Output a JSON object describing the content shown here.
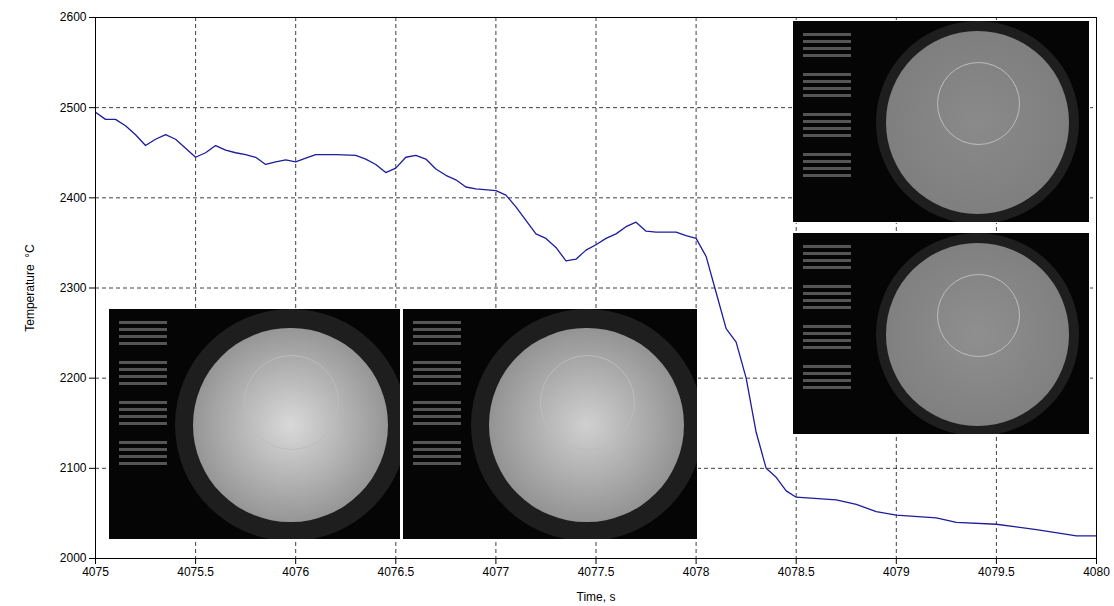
{
  "chart_data": {
    "type": "line",
    "x_label": "Time, s",
    "y_label": "Temperature  °C",
    "x": [
      4075,
      4075.05,
      4075.1,
      4075.15,
      4075.2,
      4075.25,
      4075.3,
      4075.35,
      4075.4,
      4075.45,
      4075.5,
      4075.55,
      4075.6,
      4075.65,
      4075.7,
      4075.75,
      4075.8,
      4075.85,
      4075.9,
      4075.95,
      4076,
      4076.05,
      4076.1,
      4076.2,
      4076.3,
      4076.35,
      4076.4,
      4076.45,
      4076.5,
      4076.55,
      4076.6,
      4076.65,
      4076.7,
      4076.75,
      4076.8,
      4076.85,
      4076.9,
      4077,
      4077.05,
      4077.1,
      4077.15,
      4077.2,
      4077.25,
      4077.3,
      4077.35,
      4077.4,
      4077.45,
      4077.5,
      4077.55,
      4077.6,
      4077.65,
      4077.7,
      4077.75,
      4077.8,
      4077.9,
      4077.95,
      4078,
      4078.05,
      4078.1,
      4078.15,
      4078.2,
      4078.25,
      4078.3,
      4078.35,
      4078.4,
      4078.45,
      4078.5,
      4078.7,
      4078.8,
      4078.9,
      4079,
      4079.2,
      4079.3,
      4079.5,
      4079.7,
      4079.9,
      4080
    ],
    "values": [
      2495,
      2487,
      2487,
      2480,
      2470,
      2458,
      2465,
      2470,
      2465,
      2455,
      2445,
      2450,
      2458,
      2453,
      2450,
      2448,
      2445,
      2437,
      2440,
      2442,
      2440,
      2444,
      2448,
      2448,
      2447,
      2443,
      2437,
      2428,
      2433,
      2445,
      2447,
      2443,
      2432,
      2425,
      2420,
      2412,
      2410,
      2408,
      2403,
      2390,
      2375,
      2360,
      2355,
      2345,
      2330,
      2332,
      2342,
      2348,
      2355,
      2360,
      2368,
      2373,
      2363,
      2362,
      2362,
      2358,
      2355,
      2335,
      2295,
      2255,
      2240,
      2200,
      2140,
      2100,
      2090,
      2075,
      2068,
      2065,
      2060,
      2052,
      2048,
      2045,
      2040,
      2038,
      2032,
      2025,
      2025
    ],
    "color": "#1c1c9c",
    "xlim": [
      4075,
      4080
    ],
    "ylim": [
      2000,
      2600
    ],
    "xticks": [
      4075,
      4075.5,
      4076,
      4076.5,
      4077,
      4077.5,
      4078,
      4078.5,
      4079,
      4079.5,
      4080
    ],
    "yticks": [
      2000,
      2100,
      2200,
      2300,
      2400,
      2500,
      2600
    ],
    "grid": true
  }
}
